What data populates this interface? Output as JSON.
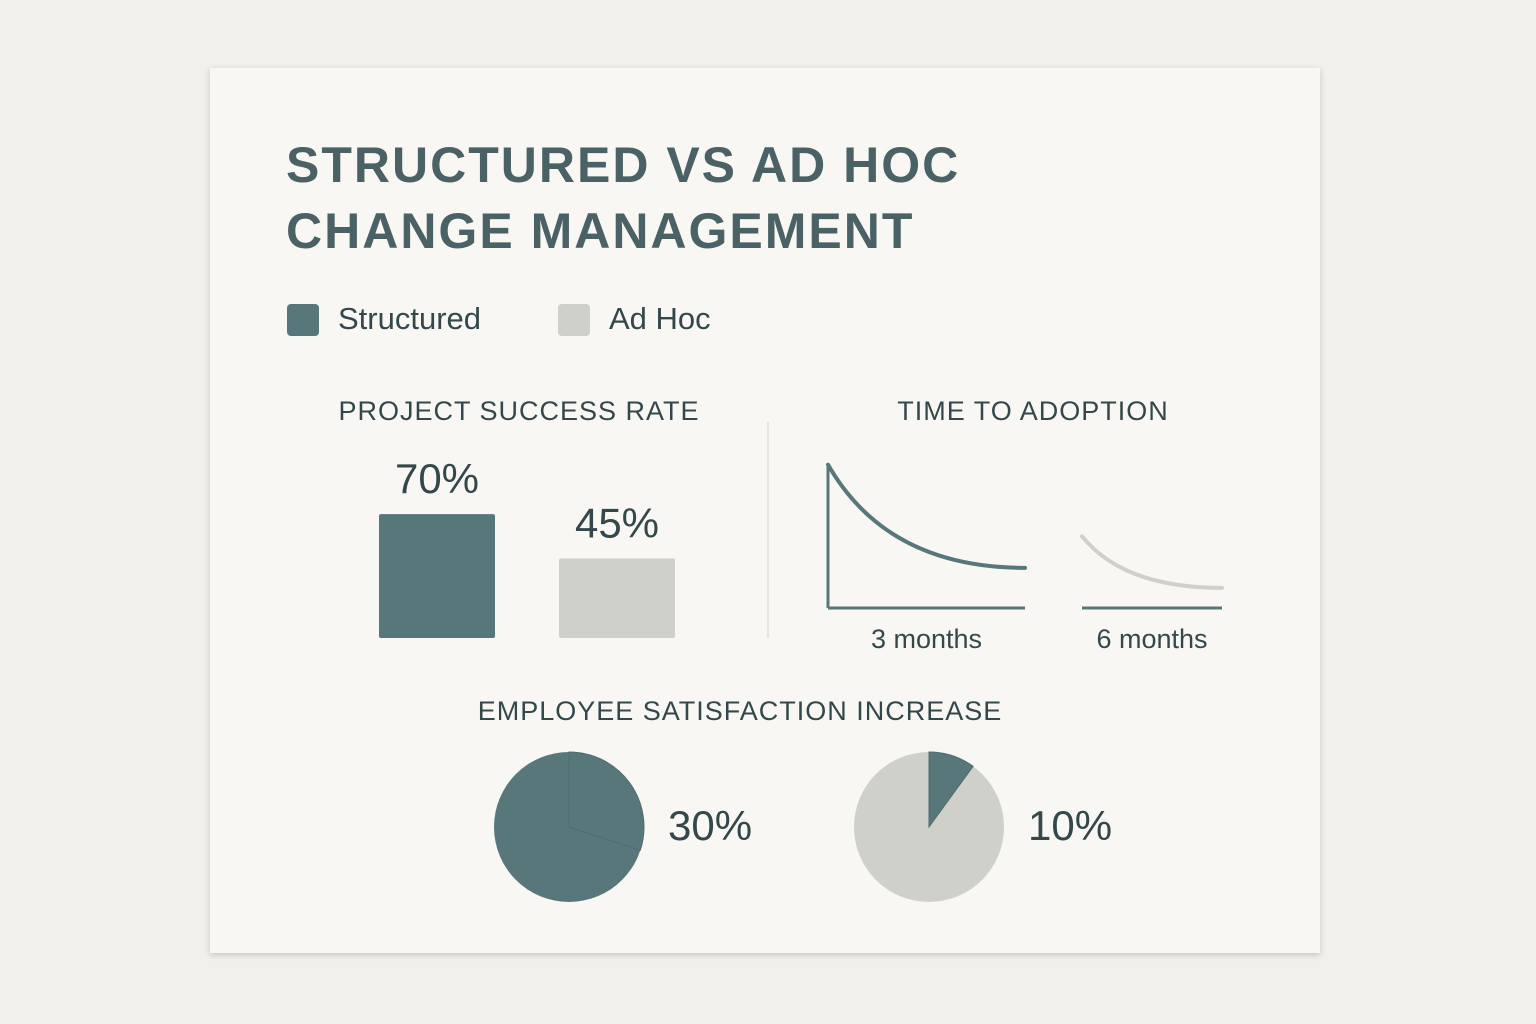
{
  "title": "STRUCTURED VS AD HOC CHANGE MANAGEMENT",
  "chart_data": [
    {
      "type": "bar",
      "title": "PROJECT SUCCESS RATE",
      "series": [
        {
          "name": "Structured",
          "color": "#57777a",
          "values": [
            70
          ],
          "value_labels": [
            "70%"
          ]
        },
        {
          "name": "Ad Hoc",
          "color": "#d0d0ca",
          "values": [
            45
          ],
          "value_labels": [
            "45%"
          ]
        }
      ]
    },
    {
      "type": "curve",
      "title": "TIME TO ADOPTION",
      "values": [
        3,
        6
      ],
      "value_labels": [
        "3 months",
        "6 months"
      ],
      "colors": [
        "#57777a",
        "#d0d0ca"
      ]
    },
    {
      "type": "pie",
      "title": "EMPLOYEE SATISFACTION INCREASE",
      "values": [
        30,
        10
      ],
      "value_labels": [
        "30%",
        "10%"
      ],
      "colors": [
        "#57777a",
        "#d0d0ca"
      ]
    }
  ]
}
